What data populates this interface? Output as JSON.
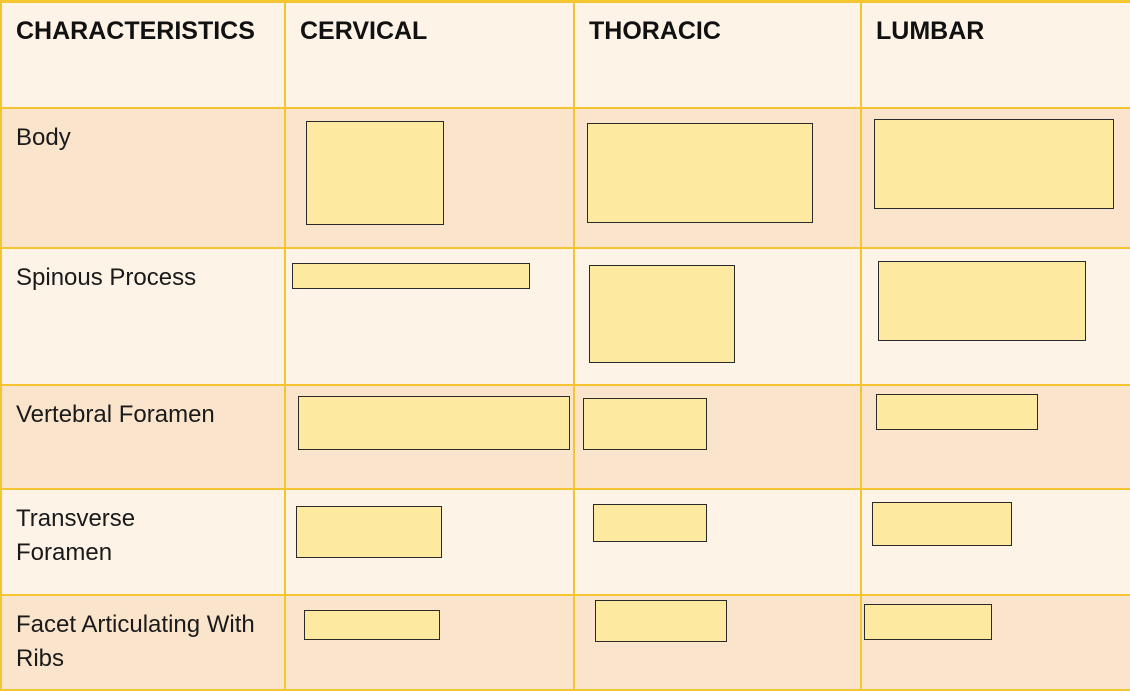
{
  "table": {
    "headers": [
      "CHARACTERISTICS",
      "CERVICAL",
      "THORACIC",
      "LUMBAR"
    ],
    "rows": [
      {
        "label": "Body"
      },
      {
        "label": "Spinous Process"
      },
      {
        "label": "Vertebral Foramen"
      },
      {
        "label": "Transverse Foramen"
      },
      {
        "label": "Facet Articulating With Ribs"
      }
    ]
  },
  "colors": {
    "grid_line": "#f5c531",
    "header_bg": "#fdf3e7",
    "row_shade": "#fbe4cc",
    "row_light": "#fdf3e7",
    "answer_box_fill": "#fde99f"
  }
}
